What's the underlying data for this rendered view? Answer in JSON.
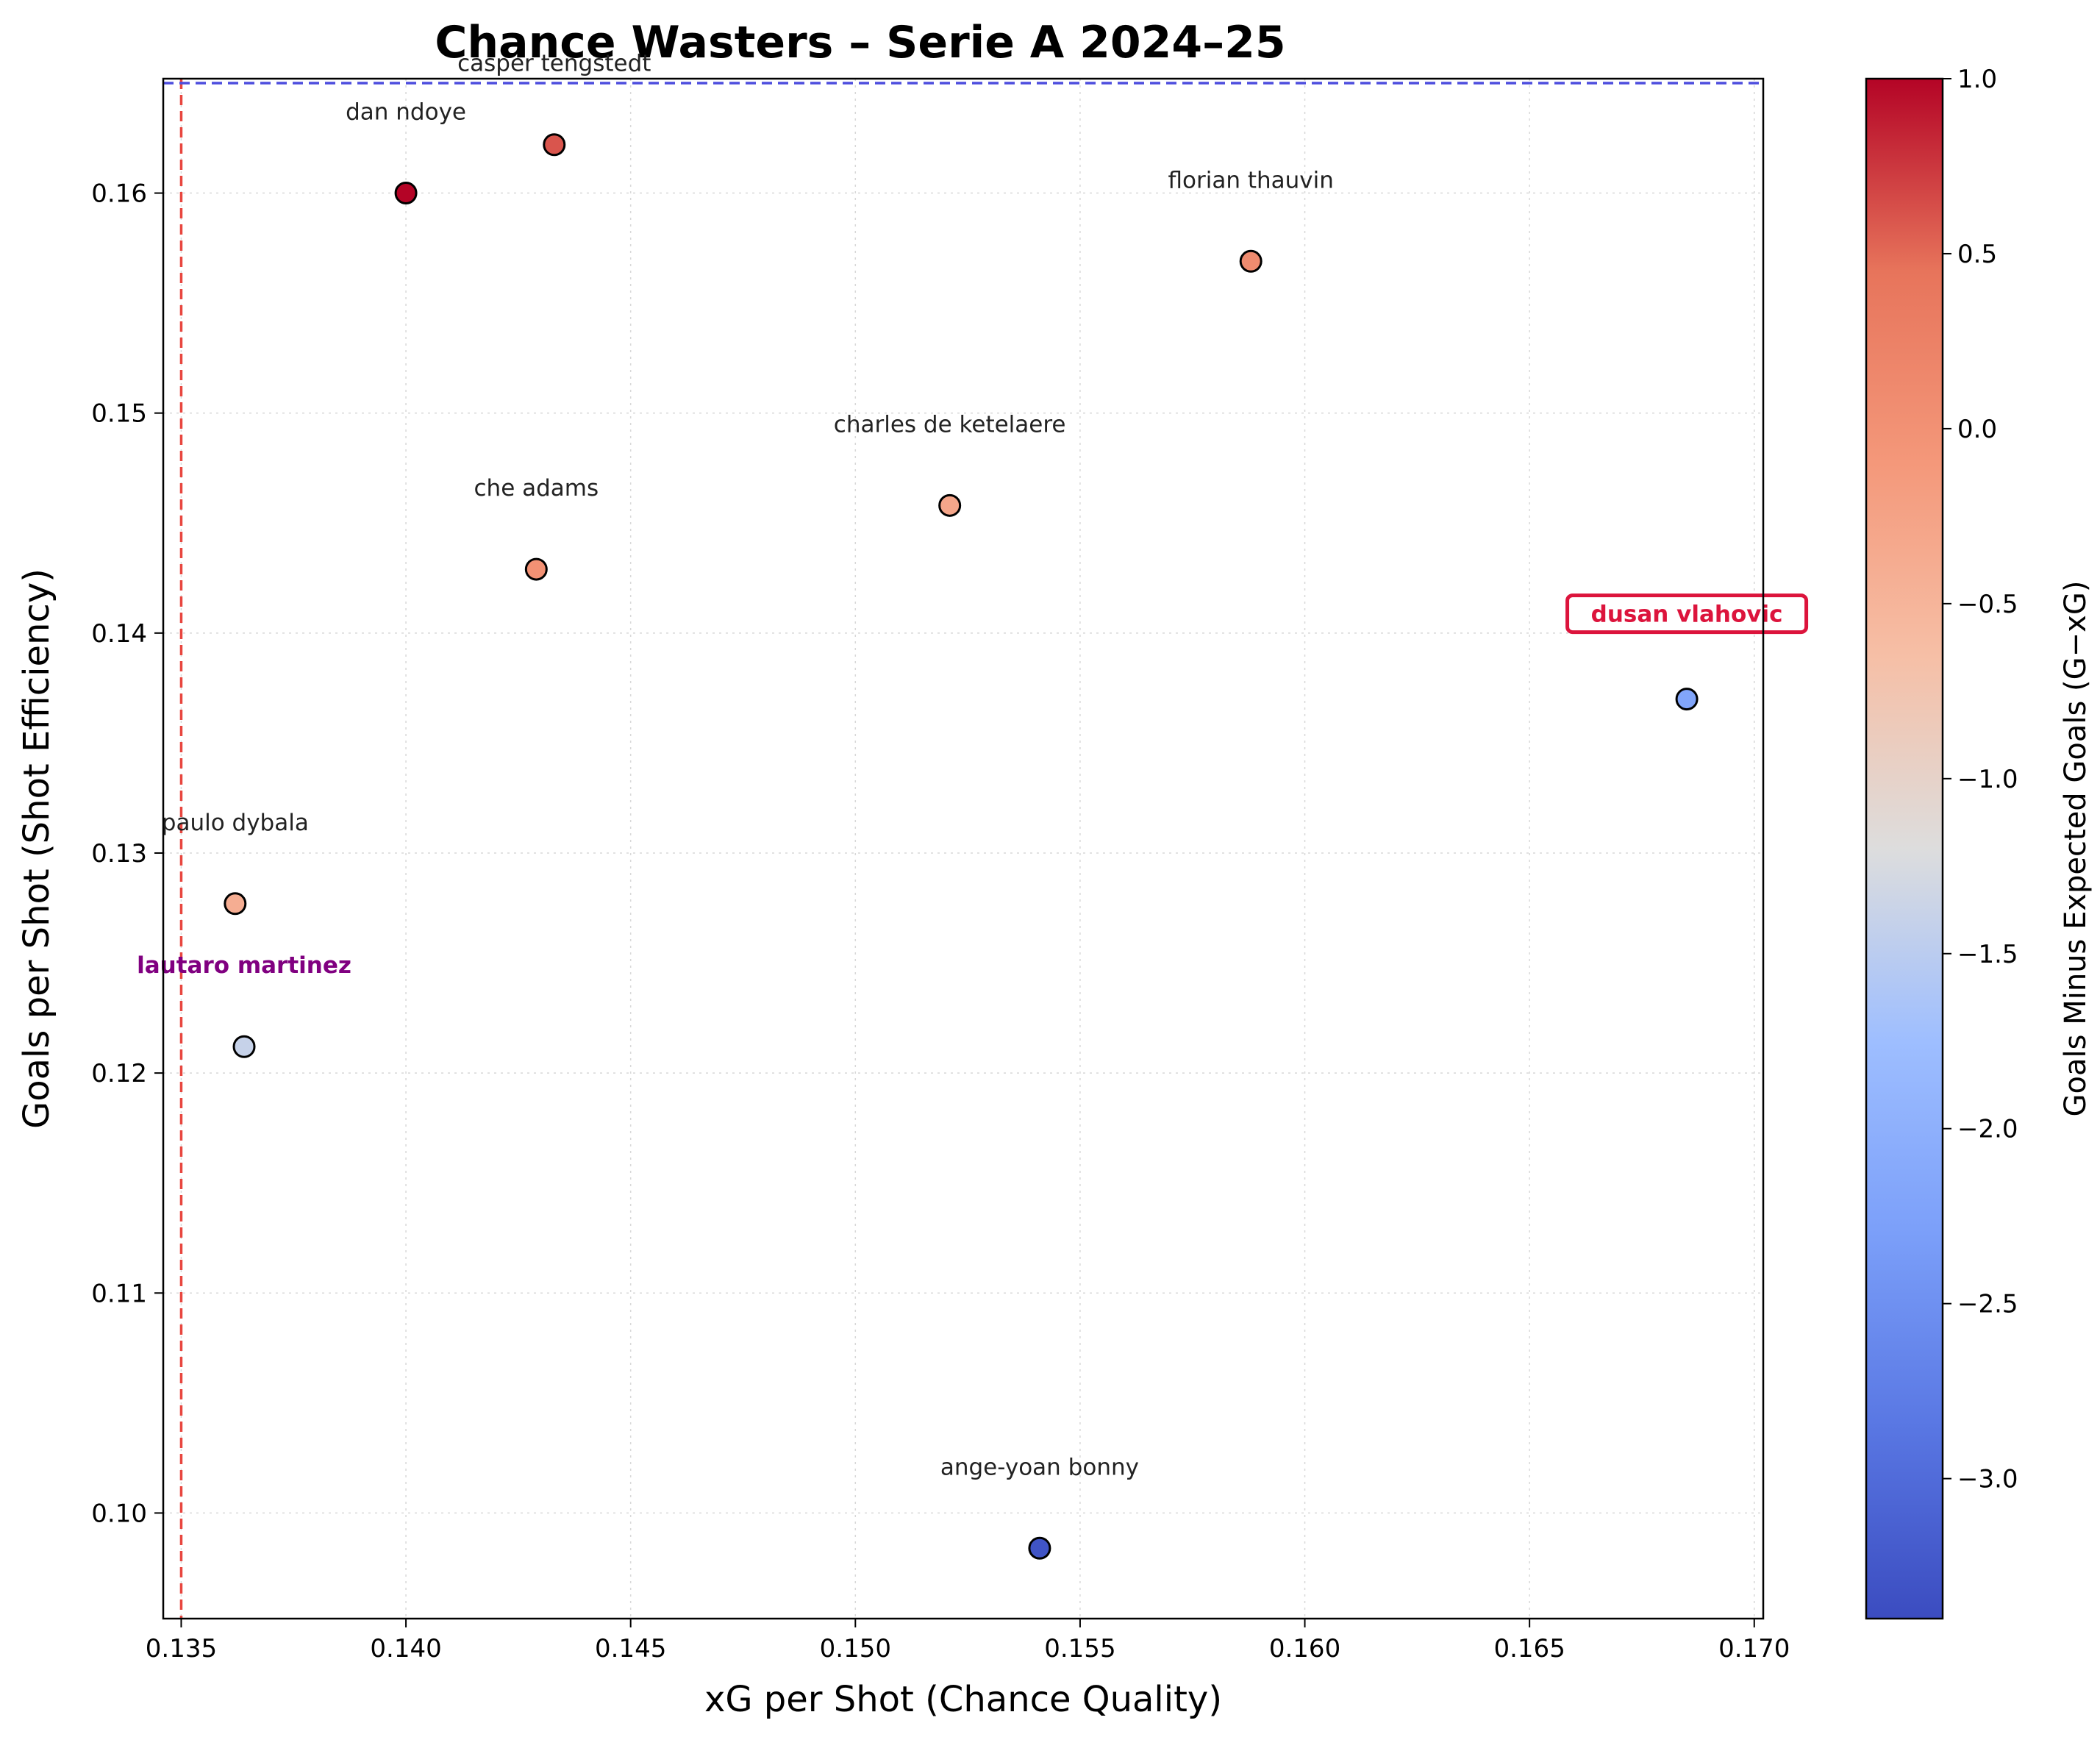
{
  "chart_data": {
    "type": "scatter",
    "title": "Chance Wasters – Serie A 2024–25",
    "xlabel": "xG per Shot (Chance Quality)",
    "ylabel": "Goals per Shot (Shot Efficiency)",
    "xlim": [
      0.1346,
      0.1702
    ],
    "ylim": [
      0.0952,
      0.1652
    ],
    "xticks": [
      "0.135",
      "0.140",
      "0.145",
      "0.150",
      "0.155",
      "0.160",
      "0.165",
      "0.170"
    ],
    "yticks": [
      "0.10",
      "0.11",
      "0.12",
      "0.13",
      "0.14",
      "0.15",
      "0.16"
    ],
    "grid": true,
    "reference_lines": {
      "vertical_x": 0.135,
      "horizontal_y": 0.165
    },
    "colorbar": {
      "label": "Goals Minus Expected Goals (G−xG)",
      "range": [
        -3.4,
        1.0
      ],
      "ticks": [
        "1.0",
        "0.5",
        "0.0",
        "−0.5",
        "−1.0",
        "−1.5",
        "−2.0",
        "−2.5",
        "−3.0"
      ],
      "colormap": "coolwarm"
    },
    "points": [
      {
        "label": "casper tengstedt",
        "x": 0.1433,
        "y": 0.1622,
        "g_minus_xg": 0.6
      },
      {
        "label": "dan ndoye",
        "x": 0.14,
        "y": 0.16,
        "g_minus_xg": 1.0
      },
      {
        "label": "florian thauvin",
        "x": 0.1588,
        "y": 0.1569,
        "g_minus_xg": 0.1
      },
      {
        "label": "charles de ketelaere",
        "x": 0.1521,
        "y": 0.1458,
        "g_minus_xg": -0.3
      },
      {
        "label": "che adams",
        "x": 0.1429,
        "y": 0.1429,
        "g_minus_xg": 0.0
      },
      {
        "label": "dusan vlahovic",
        "x": 0.1685,
        "y": 0.137,
        "g_minus_xg": -2.2,
        "highlight": "box"
      },
      {
        "label": "paulo dybala",
        "x": 0.1362,
        "y": 0.1277,
        "g_minus_xg": -0.4
      },
      {
        "label": "lautaro martinez",
        "x": 0.1364,
        "y": 0.1212,
        "g_minus_xg": -1.4,
        "highlight": "bold"
      },
      {
        "label": "ange-yoan bonny",
        "x": 0.1541,
        "y": 0.0984,
        "g_minus_xg": -3.3
      }
    ]
  }
}
